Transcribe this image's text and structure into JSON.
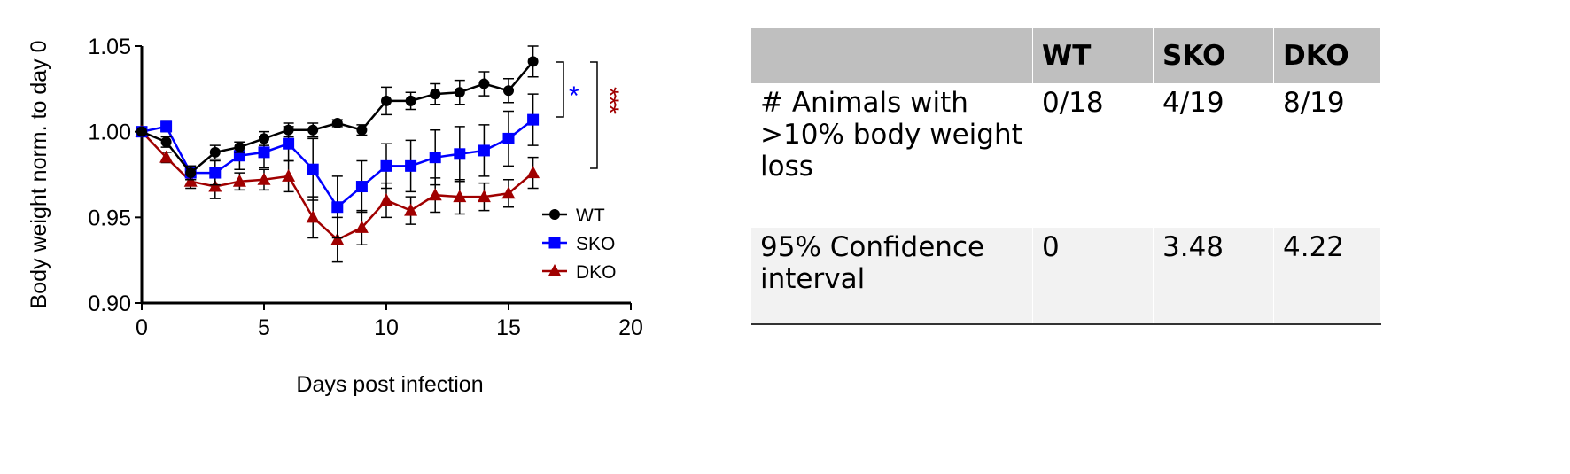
{
  "chart_data": {
    "type": "line",
    "xlabel": "Days post infection",
    "ylabel": "Body weight norm. to day 0",
    "xlim": [
      0,
      20
    ],
    "ylim": [
      0.9,
      1.05
    ],
    "xticks": [
      "0",
      "5",
      "10",
      "15",
      "20"
    ],
    "yticks": [
      "0.90",
      "0.95",
      "1.00",
      "1.05"
    ],
    "legend_position": "right",
    "x": [
      0,
      1,
      2,
      3,
      4,
      5,
      6,
      7,
      8,
      9,
      10,
      11,
      12,
      13,
      14,
      15,
      16
    ],
    "series": [
      {
        "name": "WT",
        "color": "#000000",
        "marker": "circle",
        "values": [
          1.0,
          0.994,
          0.976,
          0.988,
          0.991,
          0.996,
          1.001,
          1.001,
          1.005,
          1.001,
          1.018,
          1.018,
          1.022,
          1.023,
          1.028,
          1.024,
          1.041
        ],
        "errors": [
          0,
          0.003,
          0.004,
          0.004,
          0.003,
          0.004,
          0.004,
          0.004,
          0.002,
          0.003,
          0.008,
          0.005,
          0.006,
          0.007,
          0.007,
          0.007,
          0.009
        ]
      },
      {
        "name": "SKO",
        "color": "#0000ff",
        "marker": "square",
        "values": [
          1.0,
          1.003,
          0.976,
          0.976,
          0.986,
          0.988,
          0.993,
          0.978,
          0.956,
          0.968,
          0.98,
          0.98,
          0.985,
          0.987,
          0.989,
          0.996,
          1.007
        ],
        "errors": [
          0,
          0.003,
          0.004,
          0.007,
          0.008,
          0.009,
          0.01,
          0.018,
          0.018,
          0.015,
          0.013,
          0.015,
          0.016,
          0.016,
          0.015,
          0.016,
          0.015
        ]
      },
      {
        "name": "DKO",
        "color": "#a00000",
        "marker": "triangle",
        "values": [
          1.0,
          0.985,
          0.971,
          0.968,
          0.971,
          0.972,
          0.974,
          0.95,
          0.937,
          0.944,
          0.96,
          0.954,
          0.963,
          0.962,
          0.962,
          0.964,
          0.976
        ],
        "errors": [
          0,
          0.003,
          0.004,
          0.007,
          0.005,
          0.006,
          0.009,
          0.012,
          0.013,
          0.01,
          0.01,
          0.008,
          0.01,
          0.01,
          0.008,
          0.008,
          0.009
        ]
      }
    ],
    "annotations": [
      {
        "text": "*",
        "color": "#0000ff",
        "comparison": "WT vs SKO"
      },
      {
        "text": "***",
        "color": "#a00000",
        "comparison": "WT vs DKO"
      }
    ]
  },
  "table": {
    "headers": [
      "",
      "WT",
      "SKO",
      "DKO"
    ],
    "rows": [
      [
        "# Animals with >10% body weight loss",
        "0/18",
        "4/19",
        "8/19"
      ],
      [
        "95% Confidence interval",
        "0",
        "3.48",
        "4.22"
      ]
    ]
  }
}
